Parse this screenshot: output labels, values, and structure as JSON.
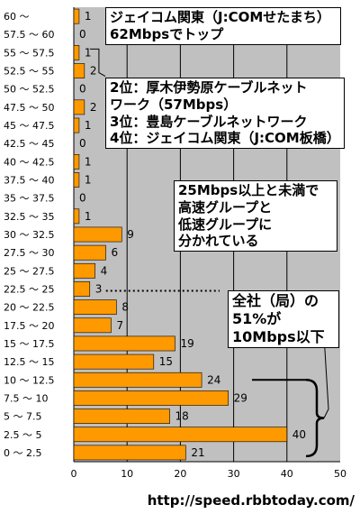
{
  "chart_data": {
    "type": "bar",
    "orientation": "horizontal",
    "categories": [
      "60 ～",
      "57.5 ～ 60",
      "55 ～ 57.5",
      "52.5 ～ 55",
      "50 ～ 52.5",
      "47.5 ～ 50",
      "45 ～ 47.5",
      "42.5 ～ 45",
      "40 ～ 42.5",
      "37.5 ～ 40",
      "35 ～ 37.5",
      "32.5 ～ 35",
      "30 ～ 32.5",
      "27.5 ～ 30",
      "25 ～ 27.5",
      "22.5 ～ 25",
      "20 ～ 22.5",
      "17.5 ～ 20",
      "15 ～ 17.5",
      "12.5 ～ 15",
      "10 ～ 12.5",
      "7.5 ～ 10",
      "5 ～ 7.5",
      "2.5 ～ 5",
      "0 ～ 2.5"
    ],
    "values": [
      1,
      0,
      1,
      2,
      0,
      2,
      1,
      0,
      1,
      1,
      0,
      1,
      9,
      6,
      4,
      3,
      8,
      7,
      19,
      15,
      24,
      29,
      18,
      40,
      21
    ],
    "xlim": [
      0,
      50
    ],
    "xticks": [
      "0",
      "10",
      "20",
      "30",
      "40",
      "50"
    ],
    "grid": true,
    "bar_color": "#ff9900",
    "plot_background": "#c0c0c0",
    "annotations": [
      "ジェイコム関東（J:COMせたまち）\n62Mbpsでトップ",
      "2位：厚木伊勢原ケーブルネット\nワーク（57Mbps）\n3位：豊島ケーブルネットワーク\n4位：ジェイコム関東（J:COM板橋）",
      "25Mbps以上と未満で\n高速グループと\n低速グループに\n分かれている",
      "全社（局）の\n51%が\n10Mbps以下"
    ]
  },
  "source": "http://speed.rbbtoday.com/"
}
